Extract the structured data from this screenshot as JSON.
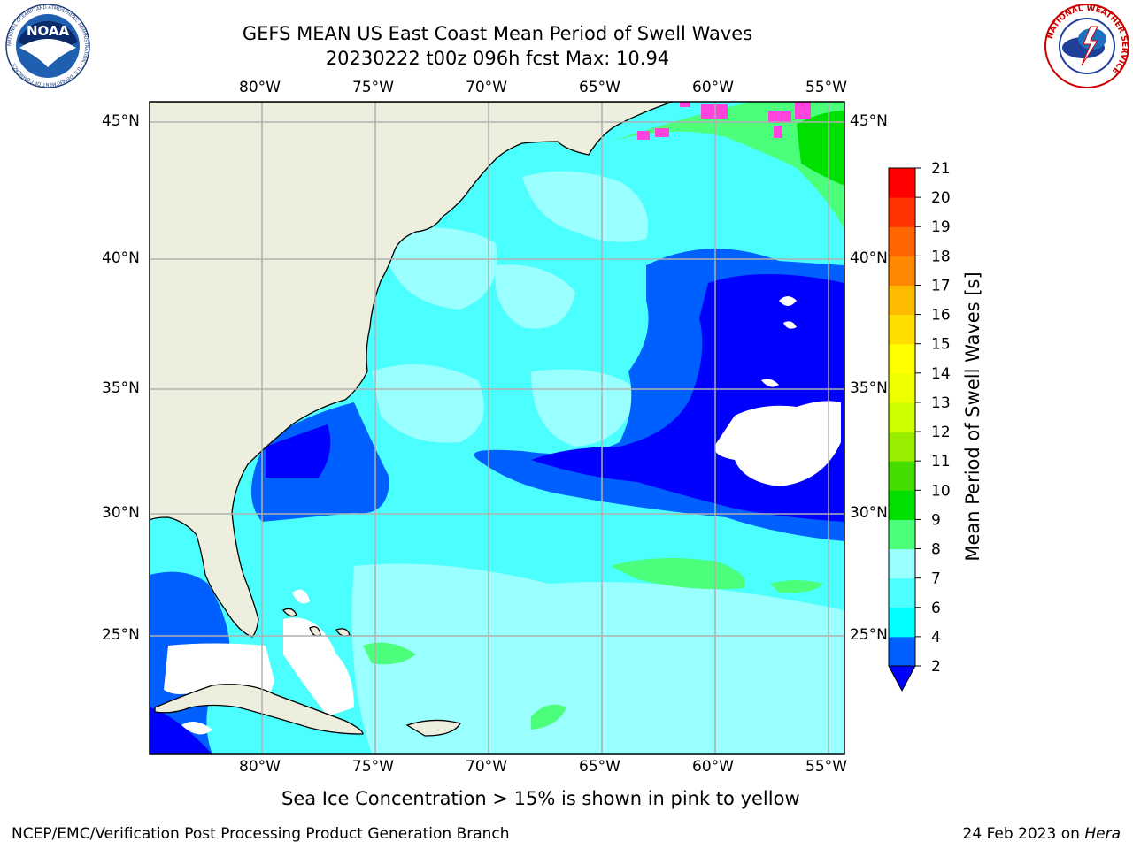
{
  "header": {
    "title": "GEFS MEAN US East Coast Mean Period of Swell Waves",
    "subtitle": "20230222 t00z 096h fcst   Max: 10.94"
  },
  "map": {
    "longitude_ticks": [
      "80°W",
      "75°W",
      "70°W",
      "65°W",
      "60°W",
      "55°W"
    ],
    "latitude_ticks": [
      "45°N",
      "40°N",
      "35°N",
      "30°N",
      "25°N"
    ],
    "colors": {
      "land": "#eeeede",
      "ocean_2_4": "#0000ff",
      "ocean_4_6": "#0060ff",
      "ocean_6_7": "#00ffff",
      "ocean_7_8": "#4cffff",
      "ocean_8_9": "#99ffff",
      "ocean_9_10": "#4cff7a",
      "ocean_10_11": "#00e000",
      "sea_ice": "#ff44dd",
      "grid": "#b0b0b0"
    }
  },
  "colorbar": {
    "label": "Mean Period of Swell Waves [s]",
    "ticks": [
      "2",
      "4",
      "6",
      "7",
      "8",
      "9",
      "10",
      "11",
      "12",
      "13",
      "14",
      "15",
      "16",
      "17",
      "18",
      "19",
      "20",
      "21"
    ],
    "colors": [
      "#0060ff",
      "#00ffff",
      "#4cffff",
      "#99ffff",
      "#4cff7a",
      "#00e000",
      "#44dd00",
      "#99ee00",
      "#ccff00",
      "#eeff00",
      "#ffff00",
      "#ffdd00",
      "#ffbb00",
      "#ff8800",
      "#ff6600",
      "#ff3300",
      "#ff0000"
    ],
    "extend_color": "#0000ff"
  },
  "logos": {
    "noaa_text": "NOAA",
    "noaa_ring": "NATIONAL OCEANIC AND ATMOSPHERIC ADMINISTRATION • U.S. DEPARTMENT OF COMMERCE",
    "nws_ring": "NATIONAL WEATHER SERVICE"
  },
  "footer": {
    "ice_note": "Sea Ice Concentration > 15% is shown in pink to yellow",
    "branch": "NCEP/EMC/Verification Post Processing Product Generation Branch",
    "date": "24 Feb 2023 on ",
    "machine": "Hera"
  }
}
